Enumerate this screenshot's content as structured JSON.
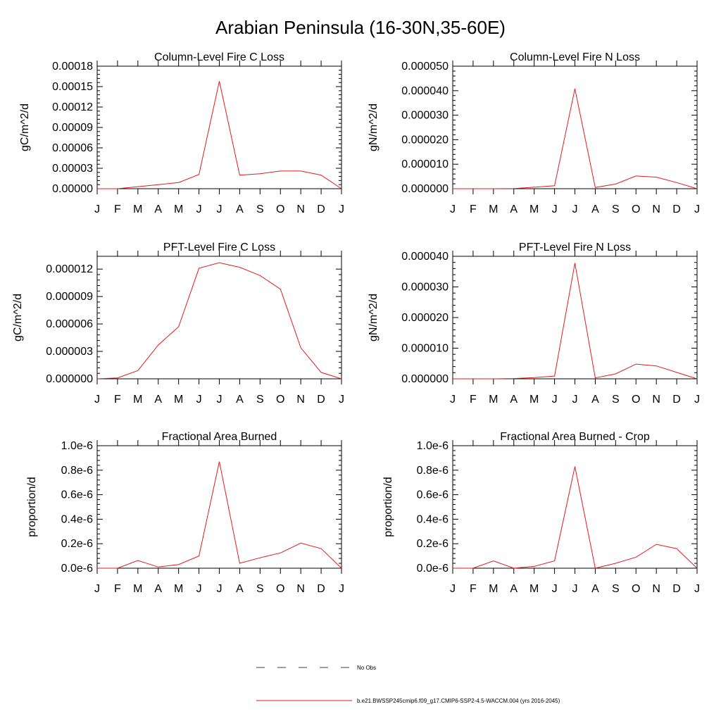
{
  "main_title": "Arabian Peninsula (16-30N,35-60E)",
  "chart_data": [
    {
      "type": "line",
      "title": "Column-Level Fire C Loss",
      "ylabel": "gC/m^2/d",
      "xlabel": "",
      "categories": [
        "J",
        "F",
        "M",
        "A",
        "M",
        "J",
        "J",
        "A",
        "S",
        "O",
        "N",
        "D",
        "J"
      ],
      "ylim": [
        0,
        0.00018
      ],
      "yticks": [
        "0.00000",
        "0.00003",
        "0.00006",
        "0.00009",
        "0.00012",
        "0.00015",
        "0.00018"
      ],
      "series": [
        {
          "values": [
            0,
            0,
            3e-06,
            6e-06,
            9e-06,
            2.1e-05,
            0.000158,
            2e-05,
            2.2e-05,
            2.6e-05,
            2.6e-05,
            2e-05,
            0
          ]
        }
      ]
    },
    {
      "type": "line",
      "title": "Column-Level Fire N Loss",
      "ylabel": "gN/m^2/d",
      "xlabel": "",
      "categories": [
        "J",
        "F",
        "M",
        "A",
        "M",
        "J",
        "J",
        "A",
        "S",
        "O",
        "N",
        "D",
        "J"
      ],
      "ylim": [
        0,
        5e-05
      ],
      "yticks": [
        "0.000000",
        "0.000010",
        "0.000020",
        "0.000030",
        "0.000040",
        "0.000050"
      ],
      "series": [
        {
          "values": [
            0,
            0,
            0,
            1e-07,
            6e-07,
            1.2e-06,
            4.08e-05,
            5e-07,
            1.9e-06,
            5.2e-06,
            4.7e-06,
            2.5e-06,
            0
          ]
        }
      ]
    },
    {
      "type": "line",
      "title": "PFT-Level Fire C Loss",
      "ylabel": "gC/m^2/d",
      "xlabel": "",
      "categories": [
        "J",
        "F",
        "M",
        "A",
        "M",
        "J",
        "J",
        "A",
        "S",
        "O",
        "N",
        "D",
        "J"
      ],
      "ylim": [
        0,
        1.34e-05
      ],
      "yticks": [
        "0.000000",
        "0.000003",
        "0.000006",
        "0.000009",
        "0.000012"
      ],
      "series": [
        {
          "values": [
            0,
            1e-07,
            9e-07,
            3.7e-06,
            5.7e-06,
            1.21e-05,
            1.27e-05,
            1.22e-05,
            1.13e-05,
            9.8e-06,
            3.4e-06,
            7e-07,
            0
          ]
        }
      ]
    },
    {
      "type": "line",
      "title": "PFT-Level Fire N Loss",
      "ylabel": "gN/m^2/d",
      "xlabel": "",
      "categories": [
        "J",
        "F",
        "M",
        "A",
        "M",
        "J",
        "J",
        "A",
        "S",
        "O",
        "N",
        "D",
        "J"
      ],
      "ylim": [
        0,
        4e-05
      ],
      "yticks": [
        "0.000000",
        "0.000010",
        "0.000020",
        "0.000030",
        "0.000040"
      ],
      "series": [
        {
          "values": [
            0,
            0,
            0,
            1e-07,
            4e-07,
            9e-07,
            3.78e-05,
            3e-07,
            1.6e-06,
            4.8e-06,
            4.2e-06,
            2.1e-06,
            0
          ]
        }
      ]
    },
    {
      "type": "line",
      "title": "Fractional Area Burned",
      "ylabel": "proportion/d",
      "xlabel": "",
      "categories": [
        "J",
        "F",
        "M",
        "A",
        "M",
        "J",
        "J",
        "A",
        "S",
        "O",
        "N",
        "D",
        "J"
      ],
      "ylim": [
        0,
        1e-06
      ],
      "yticks": [
        "0.0e-6",
        "0.2e-6",
        "0.4e-6",
        "0.6e-6",
        "0.8e-6",
        "1.0e-6"
      ],
      "series": [
        {
          "values": [
            0,
            0,
            6.3e-08,
            1e-08,
            3e-08,
            1e-07,
            8.7e-07,
            4e-08,
            8.5e-08,
            1.25e-07,
            2.05e-07,
            1.6e-07,
            0
          ]
        }
      ]
    },
    {
      "type": "line",
      "title": "Fractional Area Burned - Crop",
      "ylabel": "proportion/d",
      "xlabel": "",
      "categories": [
        "J",
        "F",
        "M",
        "A",
        "M",
        "J",
        "J",
        "A",
        "S",
        "O",
        "N",
        "D",
        "J"
      ],
      "ylim": [
        0,
        1e-06
      ],
      "yticks": [
        "0.0e-6",
        "0.2e-6",
        "0.4e-6",
        "0.6e-6",
        "0.8e-6",
        "1.0e-6"
      ],
      "series": [
        {
          "values": [
            0,
            0,
            6e-08,
            0,
            1.5e-08,
            6e-08,
            8.3e-07,
            0,
            4e-08,
            9e-08,
            1.95e-07,
            1.6e-07,
            0
          ]
        }
      ]
    }
  ],
  "legend": {
    "items": [
      {
        "label": "No Obs",
        "style": "dashed",
        "color": "#000000"
      },
      {
        "label": "b.e21.BWSSP245cmip6.f09_g17.CMIP6-SSP2-4.5-WACCM.004 (yrs 2016-2045)",
        "style": "solid",
        "color": "#e41a1c"
      }
    ]
  }
}
